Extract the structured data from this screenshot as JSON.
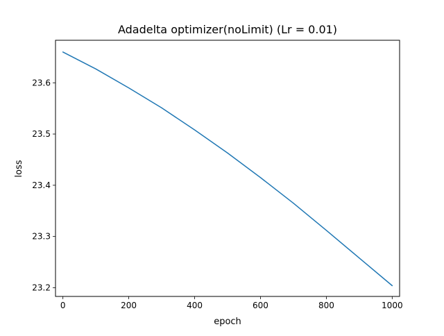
{
  "chart_data": {
    "type": "line",
    "title": "Adadelta optimizer(noLimit) (Lr = 0.01)",
    "xlabel": "epoch",
    "ylabel": "loss",
    "xlim": [
      -22.5,
      1022.5
    ],
    "ylim": [
      23.183,
      23.683
    ],
    "xticks": [
      0,
      200,
      400,
      600,
      800,
      1000
    ],
    "xtick_labels": [
      "0",
      "200",
      "400",
      "600",
      "800",
      "1000"
    ],
    "yticks": [
      23.2,
      23.3,
      23.4,
      23.5,
      23.6
    ],
    "ytick_labels": [
      "23.2",
      "23.3",
      "23.4",
      "23.5",
      "23.6"
    ],
    "grid": false,
    "line_color": "#1f77b4",
    "x": [
      0,
      100,
      200,
      300,
      400,
      500,
      600,
      700,
      800,
      900,
      1000
    ],
    "y": [
      23.66,
      23.627,
      23.59,
      23.551,
      23.508,
      23.463,
      23.415,
      23.365,
      23.312,
      23.258,
      23.204
    ]
  }
}
